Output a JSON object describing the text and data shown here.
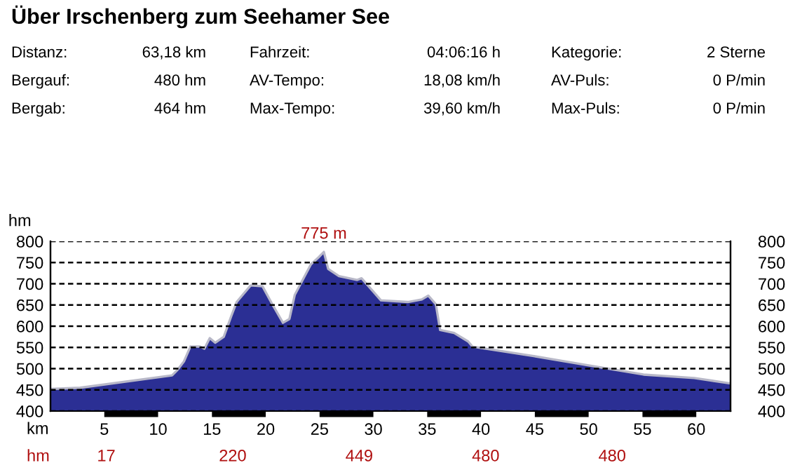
{
  "chart_data": {
    "type": "area",
    "title": "Über Irschenberg zum Seehamer See",
    "xlabel": "km",
    "ylabel": "hm",
    "annotations": [
      "Distanz:",
      "63,18 km",
      "Fahrzeit:",
      "04:06:16 h",
      "Kategorie:",
      "2 Sterne",
      "Bergauf:",
      "480 hm",
      "AV-Tempo:",
      "18,08 km/h",
      "AV-Puls:",
      "0 P/min",
      "Bergab:",
      "464 hm",
      "Max-Tempo:",
      "39,60 km/h",
      "Max-Puls:",
      "0 P/min",
      "hm",
      "17",
      "220",
      "449",
      "480",
      "480",
      {
        "text": "775 m",
        "x": 25.4,
        "y": 775
      }
    ],
    "x": [
      0,
      2.75,
      11.3,
      11.8,
      12.4,
      13.0,
      13.9,
      14.3,
      14.8,
      15.3,
      16.1,
      16.8,
      17.3,
      18.6,
      19.7,
      20.6,
      21.6,
      22.2,
      22.7,
      24.2,
      24.9,
      25.4,
      25.8,
      26.8,
      28.5,
      28.9,
      30.7,
      33.2,
      34.5,
      35.1,
      35.8,
      36.2,
      37.5,
      38.8,
      39.2,
      44.8,
      49.9,
      55.1,
      59.8,
      63.18
    ],
    "series": [
      {
        "color": "#2b2f94",
        "values": [
          452,
          455,
          484,
          497,
          517,
          552,
          552,
          547,
          572,
          561,
          575,
          624,
          657,
          696,
          694,
          652,
          608,
          617,
          674,
          746,
          762,
          775,
          735,
          718,
          709,
          713,
          661,
          657,
          663,
          672,
          652,
          591,
          584,
          564,
          552,
          530,
          508,
          486,
          478,
          465
        ]
      }
    ],
    "xlim": [
      0,
      63.18
    ],
    "xticks": [
      5,
      10,
      15,
      20,
      25,
      30,
      35,
      40,
      45,
      50,
      55,
      60
    ],
    "ylim": [
      400,
      800
    ],
    "yticks": [
      400,
      450,
      500,
      550,
      600,
      650,
      700,
      750,
      800
    ],
    "y2lim": [
      400,
      800
    ],
    "y2ticks": [
      400,
      450,
      500,
      550,
      600,
      650,
      700,
      750,
      800
    ],
    "grid": "y",
    "line_style": "dashed"
  }
}
